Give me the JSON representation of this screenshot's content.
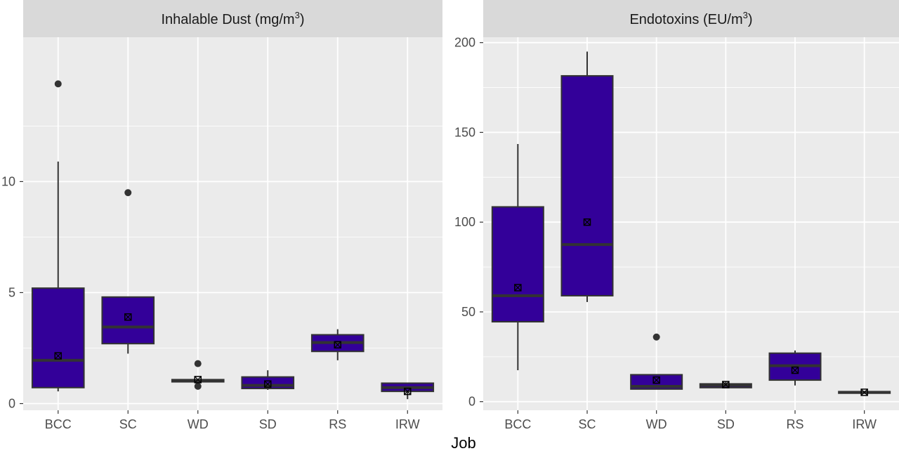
{
  "x_axis_title": "Job",
  "colors": {
    "panel_bg": "#ebebeb",
    "strip_bg": "#d9d9d9",
    "grid_major": "#ffffff",
    "box_fill": "#330099",
    "box_line": "#333333",
    "point": "#333333"
  },
  "chart_data": [
    {
      "type": "boxplot",
      "title_main": "Inhalable Dust (mg/m",
      "title_sup": "3",
      "title_end": ")",
      "xlabel": "Job",
      "ylabel": "",
      "categories": [
        "BCC",
        "SC",
        "WD",
        "SD",
        "RS",
        "IRW"
      ],
      "y_ticks": [
        0,
        5,
        10
      ],
      "ylim": [
        -0.3,
        16.5
      ],
      "grid": true,
      "boxes": [
        {
          "category": "BCC",
          "whisker_low": 0.55,
          "q1": 0.72,
          "median": 1.95,
          "q3": 5.2,
          "whisker_high": 10.9,
          "mean": 2.15,
          "outliers": [
            14.4
          ]
        },
        {
          "category": "SC",
          "whisker_low": 2.25,
          "q1": 2.7,
          "median": 3.45,
          "q3": 4.8,
          "whisker_high": 4.8,
          "mean": 3.9,
          "outliers": [
            9.5
          ]
        },
        {
          "category": "WD",
          "whisker_low": 0.95,
          "q1": 0.98,
          "median": 1.02,
          "q3": 1.08,
          "whisker_high": 1.1,
          "mean": 1.08,
          "outliers": [
            1.8,
            0.78
          ]
        },
        {
          "category": "SD",
          "whisker_low": 0.62,
          "q1": 0.68,
          "median": 0.82,
          "q3": 1.2,
          "whisker_high": 1.5,
          "mean": 0.88,
          "outliers": []
        },
        {
          "category": "RS",
          "whisker_low": 1.95,
          "q1": 2.35,
          "median": 2.75,
          "q3": 3.1,
          "whisker_high": 3.35,
          "mean": 2.65,
          "outliers": []
        },
        {
          "category": "IRW",
          "whisker_low": 0.2,
          "q1": 0.55,
          "median": 0.72,
          "q3": 0.92,
          "whisker_high": 0.92,
          "mean": 0.55,
          "outliers": []
        }
      ]
    },
    {
      "type": "boxplot",
      "title_main": "Endotoxins (EU/m",
      "title_sup": "3",
      "title_end": ")",
      "xlabel": "Job",
      "ylabel": "",
      "categories": [
        "BCC",
        "SC",
        "WD",
        "SD",
        "RS",
        "IRW"
      ],
      "y_ticks": [
        0,
        50,
        100,
        150,
        200
      ],
      "ylim": [
        -4.8,
        203
      ],
      "grid": true,
      "boxes": [
        {
          "category": "BCC",
          "whisker_low": 17.5,
          "q1": 44.5,
          "median": 59,
          "q3": 108.5,
          "whisker_high": 143.5,
          "mean": 63.5,
          "outliers": []
        },
        {
          "category": "SC",
          "whisker_low": 55.5,
          "q1": 59,
          "median": 87.5,
          "q3": 181.5,
          "whisker_high": 195,
          "mean": 100,
          "outliers": []
        },
        {
          "category": "WD",
          "whisker_low": 7,
          "q1": 7,
          "median": 8.5,
          "q3": 15,
          "whisker_high": 15,
          "mean": 12,
          "outliers": [
            36
          ]
        },
        {
          "category": "SD",
          "whisker_low": 7.5,
          "q1": 7.8,
          "median": 9.1,
          "q3": 9.9,
          "whisker_high": 11,
          "mean": 9.5,
          "outliers": []
        },
        {
          "category": "RS",
          "whisker_low": 9,
          "q1": 12,
          "median": 20,
          "q3": 27,
          "whisker_high": 28.5,
          "mean": 17.5,
          "outliers": []
        },
        {
          "category": "IRW",
          "whisker_low": 4.5,
          "q1": 4.7,
          "median": 5.2,
          "q3": 5.6,
          "whisker_high": 5.8,
          "mean": 5.2,
          "outliers": []
        }
      ]
    }
  ]
}
